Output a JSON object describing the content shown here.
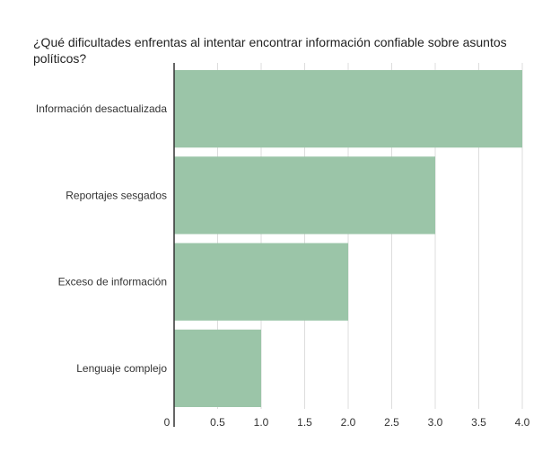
{
  "chart_data": {
    "type": "bar",
    "orientation": "horizontal",
    "title": "¿Qué dificultades enfrentas al intentar encontrar información confiable sobre asuntos políticos?",
    "categories": [
      "Información desactualizada",
      "Reportajes sesgados",
      "Exceso de información",
      "Lenguaje complejo"
    ],
    "values": [
      4,
      3,
      2,
      1
    ],
    "xlim": [
      0,
      4
    ],
    "x_ticks": [
      0,
      0.5,
      1.0,
      1.5,
      2.0,
      2.5,
      3.0,
      3.5,
      4.0
    ],
    "x_tick_labels": [
      "0",
      "0.5",
      "1.0",
      "1.5",
      "2.0",
      "2.5",
      "3.0",
      "3.5",
      "4.0"
    ],
    "grid": "vertical",
    "bar_color": "#9bc5a8",
    "xlabel": "",
    "ylabel": ""
  }
}
